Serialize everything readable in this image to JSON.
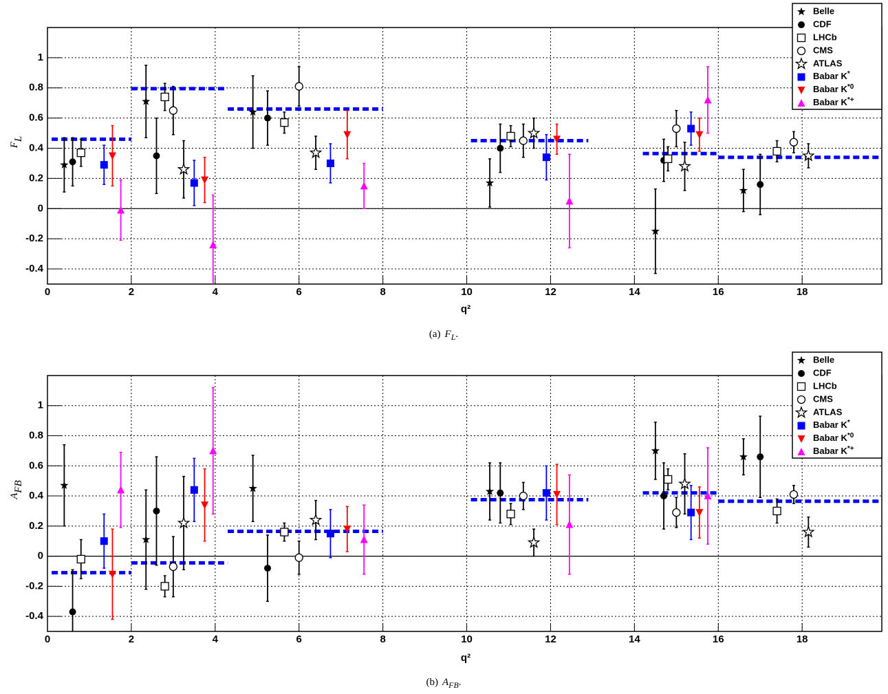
{
  "chart_data": [
    {
      "type": "scatter",
      "xlabel": "q²",
      "ylabel": {
        "text": "F",
        "sub": "L"
      },
      "caption": {
        "label": "(a)",
        "text": "F",
        "sub": "L",
        "end": "."
      },
      "xlim": [
        0,
        19.9
      ],
      "ylim": [
        -0.5,
        1.2
      ],
      "xticks": [
        0,
        2,
        4,
        6,
        8,
        10,
        12,
        14,
        16,
        18
      ],
      "yticks": [
        -0.4,
        -0.2,
        0,
        0.2,
        0.4,
        0.6,
        0.8,
        1
      ],
      "grid": true,
      "legend": "top-right",
      "series": [
        {
          "name": "Belle",
          "color": "#000000",
          "marker": "star-filled",
          "x": [
            0.4,
            2.35,
            4.9,
            10.55,
            14.5,
            16.6
          ],
          "values": [
            0.29,
            0.71,
            0.64,
            0.17,
            -0.15,
            0.12
          ],
          "errors": [
            0.18,
            0.24,
            0.24,
            0.16,
            0.28,
            0.14
          ]
        },
        {
          "name": "CDF",
          "color": "#000000",
          "marker": "circle-filled",
          "x": [
            0.6,
            2.6,
            5.25,
            10.8,
            14.7,
            17
          ],
          "values": [
            0.31,
            0.35,
            0.6,
            0.4,
            0.32,
            0.16
          ],
          "errors": [
            0.16,
            0.25,
            0.18,
            0.16,
            0.14,
            0.2
          ]
        },
        {
          "name": "LHCb",
          "color": "#000000",
          "marker": "square-open",
          "x": [
            0.8,
            2.8,
            5.65,
            11.05,
            14.8,
            17.4
          ],
          "values": [
            0.37,
            0.74,
            0.57,
            0.48,
            0.33,
            0.38
          ],
          "errors": [
            0.09,
            0.09,
            0.07,
            0.07,
            0.08,
            0.07
          ]
        },
        {
          "name": "CMS",
          "color": "#000000",
          "marker": "circle-open",
          "x": [
            3.0,
            6.0,
            11.35,
            15.0,
            17.8
          ],
          "values": [
            0.65,
            0.81,
            0.45,
            0.53,
            0.44
          ],
          "errors": [
            0.16,
            0.13,
            0.11,
            0.12,
            0.07
          ]
        },
        {
          "name": "ATLAS",
          "color": "#000000",
          "marker": "star-open",
          "x": [
            3.25,
            6.4,
            11.6,
            15.2,
            18.15
          ],
          "values": [
            0.26,
            0.37,
            0.5,
            0.28,
            0.35
          ],
          "errors": [
            0.19,
            0.11,
            0.1,
            0.16,
            0.08
          ]
        },
        {
          "name": "Babar K*",
          "color": "#0000ff",
          "marker": "square-filled",
          "x": [
            1.35,
            3.5,
            6.75,
            11.9,
            15.35
          ],
          "values": [
            0.29,
            0.17,
            0.3,
            0.34,
            0.53
          ],
          "errors": [
            0.13,
            0.15,
            0.13,
            0.15,
            0.11
          ]
        },
        {
          "name": "Babar K*0",
          "color": "#ff0000",
          "marker": "triangle-down",
          "x": [
            1.55,
            3.75,
            7.15,
            12.15,
            15.55
          ],
          "values": [
            0.35,
            0.19,
            0.49,
            0.46,
            0.49
          ],
          "errors": [
            0.2,
            0.15,
            0.16,
            0.1,
            0.11
          ]
        },
        {
          "name": "Babar K*+",
          "color": "#ff00ff",
          "marker": "triangle-up",
          "x": [
            1.75,
            3.95,
            7.55,
            12.45,
            15.75
          ],
          "values": [
            -0.01,
            -0.24,
            0.15,
            0.05,
            0.72
          ],
          "errors": [
            0.2,
            0.33,
            0.15,
            0.31,
            0.22
          ]
        }
      ],
      "prediction": {
        "color": "#0000ff",
        "x0": [
          0.1,
          2,
          4.3,
          10.1,
          14.2,
          16
        ],
        "x1": [
          2,
          4.3,
          8,
          12.9,
          16,
          19.9
        ],
        "values": [
          0.46,
          0.795,
          0.66,
          0.45,
          0.365,
          0.34
        ]
      }
    },
    {
      "type": "scatter",
      "xlabel": "q²",
      "ylabel": {
        "text": "A",
        "sub": "FB"
      },
      "caption": {
        "label": "(b)",
        "text": "A",
        "sub": "FB",
        "end": "."
      },
      "xlim": [
        0,
        19.9
      ],
      "ylim": [
        -0.5,
        1.2
      ],
      "xticks": [
        0,
        2,
        4,
        6,
        8,
        10,
        12,
        14,
        16,
        18
      ],
      "yticks": [
        -0.4,
        -0.2,
        0,
        0.2,
        0.4,
        0.6,
        0.8,
        1
      ],
      "grid": true,
      "legend": "top-right",
      "series": [
        {
          "name": "Belle",
          "color": "#000000",
          "marker": "star-filled",
          "x": [
            0.4,
            2.35,
            4.9,
            10.55,
            14.5,
            16.6
          ],
          "values": [
            0.47,
            0.11,
            0.45,
            0.43,
            0.7,
            0.66
          ],
          "errors": [
            0.27,
            0.33,
            0.22,
            0.19,
            0.19,
            0.12
          ]
        },
        {
          "name": "CDF",
          "color": "#000000",
          "marker": "circle-filled",
          "x": [
            0.6,
            2.6,
            5.25,
            10.8,
            14.7,
            17
          ],
          "values": [
            -0.37,
            0.3,
            -0.08,
            0.42,
            0.4,
            0.66
          ],
          "errors": [
            0.28,
            0.36,
            0.22,
            0.2,
            0.22,
            0.27
          ]
        },
        {
          "name": "LHCb",
          "color": "#000000",
          "marker": "square-open",
          "x": [
            0.8,
            2.8,
            5.65,
            11.05,
            14.8,
            17.4
          ],
          "values": [
            -0.02,
            -0.2,
            0.16,
            0.28,
            0.51,
            0.3
          ],
          "errors": [
            0.13,
            0.07,
            0.06,
            0.07,
            0.07,
            0.08
          ]
        },
        {
          "name": "CMS",
          "color": "#000000",
          "marker": "circle-open",
          "x": [
            3.0,
            6.0,
            11.35,
            15.0,
            17.8
          ],
          "values": [
            -0.07,
            -0.01,
            0.4,
            0.29,
            0.41
          ],
          "errors": [
            0.2,
            0.11,
            0.09,
            0.1,
            0.06
          ]
        },
        {
          "name": "ATLAS",
          "color": "#000000",
          "marker": "star-open",
          "x": [
            3.25,
            6.4,
            11.6,
            15.2,
            18.15
          ],
          "values": [
            0.22,
            0.24,
            0.09,
            0.48,
            0.16
          ],
          "errors": [
            0.31,
            0.13,
            0.09,
            0.2,
            0.1
          ]
        },
        {
          "name": "Babar K*",
          "color": "#0000ff",
          "marker": "square-filled",
          "x": [
            1.35,
            3.5,
            6.75,
            11.9,
            15.35
          ],
          "values": [
            0.1,
            0.44,
            0.15,
            0.42,
            0.29
          ],
          "errors": [
            0.18,
            0.21,
            0.16,
            0.18,
            0.18
          ]
        },
        {
          "name": "Babar K*0",
          "color": "#ff0000",
          "marker": "triangle-down",
          "x": [
            1.55,
            3.75,
            7.15,
            12.15,
            15.55
          ],
          "values": [
            -0.12,
            0.34,
            0.18,
            0.41,
            0.29
          ],
          "errors": [
            0.3,
            0.24,
            0.15,
            0.2,
            0.17
          ]
        },
        {
          "name": "Babar K*+",
          "color": "#ff00ff",
          "marker": "triangle-up",
          "x": [
            1.75,
            3.95,
            7.55,
            12.45,
            15.75
          ],
          "values": [
            0.44,
            0.7,
            0.11,
            0.21,
            0.4
          ],
          "errors": [
            0.25,
            0.42,
            0.23,
            0.33,
            0.32
          ]
        }
      ],
      "prediction": {
        "color": "#0000ff",
        "x0": [
          0.1,
          2,
          4.3,
          10.1,
          14.2,
          16
        ],
        "x1": [
          2,
          4.3,
          8,
          12.9,
          16,
          19.9
        ],
        "values": [
          -0.11,
          -0.045,
          0.165,
          0.375,
          0.42,
          0.365
        ]
      }
    }
  ]
}
